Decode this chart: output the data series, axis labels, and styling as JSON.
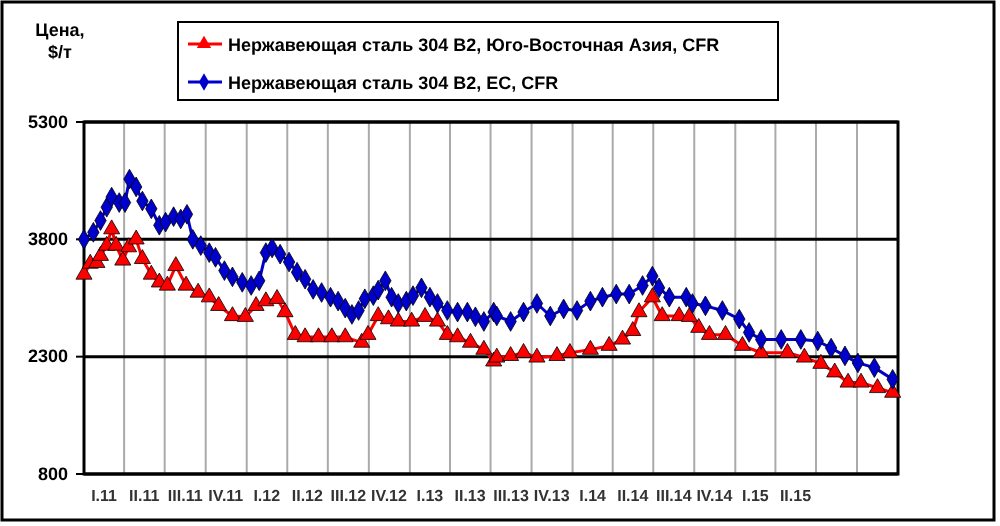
{
  "chart_data": {
    "type": "line",
    "ylabel": "Цена, $/т",
    "xlim": [
      "2011-01-01",
      "2016-01-01"
    ],
    "ylim": [
      800,
      5300
    ],
    "yticks": [
      800,
      2300,
      3800,
      5300
    ],
    "xticks": [
      {
        "value": "2011-02-15",
        "label": "I.11"
      },
      {
        "value": "2011-04-01",
        "label": null
      },
      {
        "value": "2011-05-16",
        "label": "II.11"
      },
      {
        "value": "2011-07-01",
        "label": null
      },
      {
        "value": "2011-08-16",
        "label": "III.11"
      },
      {
        "value": "2011-10-01",
        "label": null
      },
      {
        "value": "2011-11-15",
        "label": "IV.11"
      },
      {
        "value": "2012-01-01",
        "label": null
      },
      {
        "value": "2012-02-15",
        "label": "I.12"
      },
      {
        "value": "2012-04-01",
        "label": null
      },
      {
        "value": "2012-05-16",
        "label": "II.12"
      },
      {
        "value": "2012-07-01",
        "label": null
      },
      {
        "value": "2012-08-16",
        "label": "III.12"
      },
      {
        "value": "2012-10-01",
        "label": null
      },
      {
        "value": "2012-11-15",
        "label": "IV.12"
      },
      {
        "value": "2013-01-01",
        "label": null
      },
      {
        "value": "2013-02-15",
        "label": "I.13"
      },
      {
        "value": "2013-04-01",
        "label": null
      },
      {
        "value": "2013-05-16",
        "label": "II.13"
      },
      {
        "value": "2013-07-01",
        "label": null
      },
      {
        "value": "2013-08-16",
        "label": "III.13"
      },
      {
        "value": "2013-10-01",
        "label": null
      },
      {
        "value": "2013-11-15",
        "label": "IV.13"
      },
      {
        "value": "2014-01-01",
        "label": null
      },
      {
        "value": "2014-02-15",
        "label": "I.14"
      },
      {
        "value": "2014-04-01",
        "label": null
      },
      {
        "value": "2014-05-16",
        "label": "II.14"
      },
      {
        "value": "2014-07-01",
        "label": null
      },
      {
        "value": "2014-08-16",
        "label": "III.14"
      },
      {
        "value": "2014-10-01",
        "label": null
      },
      {
        "value": "2014-11-15",
        "label": "IV.14"
      },
      {
        "value": "2015-01-01",
        "label": null
      },
      {
        "value": "2015-02-15",
        "label": "I.15"
      },
      {
        "value": "2015-04-01",
        "label": null
      },
      {
        "value": "2015-05-16",
        "label": "II.15"
      },
      {
        "value": "2015-07-01",
        "label": null
      },
      {
        "value": "2015-10-01",
        "label": null
      }
    ],
    "grid": true,
    "legend": "top",
    "series": [
      {
        "name": "Нержавеющая сталь 304 В2, Юго-Восточная Азия, CFR",
        "color": "#ff0000",
        "marker": "triangle",
        "x": [
          "2011-01-01",
          "2011-01-15",
          "2011-01-30",
          "2011-02-07",
          "2011-02-21",
          "2011-03-04",
          "2011-03-14",
          "2011-03-29",
          "2011-04-11",
          "2011-04-28",
          "2011-05-12",
          "2011-06-01",
          "2011-06-19",
          "2011-07-07",
          "2011-07-26",
          "2011-08-18",
          "2011-09-14",
          "2011-10-09",
          "2011-10-30",
          "2011-11-30",
          "2011-12-29",
          "2012-01-22",
          "2012-02-13",
          "2012-03-09",
          "2012-03-27",
          "2012-04-19",
          "2012-05-11",
          "2012-06-10",
          "2012-07-10",
          "2012-08-09",
          "2012-09-15",
          "2012-09-29",
          "2012-10-22",
          "2012-11-14",
          "2012-12-06",
          "2013-01-05",
          "2013-02-04",
          "2013-03-04",
          "2013-03-26",
          "2013-04-18",
          "2013-05-17",
          "2013-06-16",
          "2013-07-08",
          "2013-07-15",
          "2013-08-15",
          "2013-09-13",
          "2013-10-13",
          "2013-11-27",
          "2013-12-26",
          "2014-02-10",
          "2014-03-24",
          "2014-04-23",
          "2014-05-16",
          "2014-05-30",
          "2014-06-29",
          "2014-07-21",
          "2014-08-28",
          "2014-09-20",
          "2014-10-11",
          "2014-11-04",
          "2014-12-10",
          "2015-01-17",
          "2015-02-28",
          "2015-04-28",
          "2015-06-05",
          "2015-07-12",
          "2015-08-12",
          "2015-09-11",
          "2015-10-10",
          "2015-11-16",
          "2015-12-20"
        ],
        "values": [
          3350,
          3490,
          3500,
          3590,
          3720,
          3930,
          3720,
          3530,
          3700,
          3800,
          3550,
          3350,
          3250,
          3210,
          3460,
          3210,
          3120,
          3060,
          2950,
          2820,
          2810,
          2950,
          3010,
          3040,
          2870,
          2580,
          2550,
          2550,
          2550,
          2550,
          2480,
          2580,
          2820,
          2780,
          2750,
          2750,
          2810,
          2750,
          2580,
          2550,
          2480,
          2390,
          2240,
          2290,
          2310,
          2350,
          2290,
          2310,
          2350,
          2390,
          2440,
          2520,
          2630,
          2870,
          3060,
          2820,
          2820,
          2810,
          2670,
          2580,
          2580,
          2440,
          2350,
          2350,
          2290,
          2210,
          2100,
          1970,
          1970,
          1900,
          1840
        ]
      },
      {
        "name": "Нержавеющая сталь 304 В2, ЕС, CFR",
        "color": "#0000cc",
        "marker": "diamond",
        "x": [
          "2011-01-01",
          "2011-01-22",
          "2011-02-07",
          "2011-02-21",
          "2011-03-04",
          "2011-03-21",
          "2011-04-03",
          "2011-04-13",
          "2011-04-28",
          "2011-05-12",
          "2011-06-01",
          "2011-06-19",
          "2011-07-03",
          "2011-07-21",
          "2011-08-06",
          "2011-08-20",
          "2011-09-02",
          "2011-09-20",
          "2011-10-09",
          "2011-10-23",
          "2011-11-12",
          "2011-11-30",
          "2011-12-22",
          "2012-01-11",
          "2012-01-29",
          "2012-02-13",
          "2012-02-27",
          "2012-03-16",
          "2012-04-05",
          "2012-04-23",
          "2012-05-11",
          "2012-05-29",
          "2012-06-17",
          "2012-07-07",
          "2012-07-24",
          "2012-08-09",
          "2012-08-24",
          "2012-09-08",
          "2012-09-22",
          "2012-10-11",
          "2012-10-22",
          "2012-11-07",
          "2012-11-21",
          "2012-12-06",
          "2012-12-24",
          "2013-01-08",
          "2013-01-27",
          "2013-02-15",
          "2013-03-04",
          "2013-03-26",
          "2013-04-18",
          "2013-05-10",
          "2013-05-28",
          "2013-06-16",
          "2013-07-08",
          "2013-07-15",
          "2013-08-15",
          "2013-09-13",
          "2013-10-13",
          "2013-11-12",
          "2013-12-12",
          "2014-01-11",
          "2014-02-10",
          "2014-03-09",
          "2014-04-09",
          "2014-05-08",
          "2014-06-07",
          "2014-06-29",
          "2014-07-14",
          "2014-08-06",
          "2014-09-13",
          "2014-09-27",
          "2014-10-26",
          "2014-12-03",
          "2015-01-10",
          "2015-02-01",
          "2015-02-28",
          "2015-04-14",
          "2015-05-28",
          "2015-07-05",
          "2015-08-04",
          "2015-09-04",
          "2015-10-03",
          "2015-11-09",
          "2015-12-20"
        ],
        "values": [
          3800,
          3890,
          4040,
          4210,
          4340,
          4270,
          4270,
          4570,
          4470,
          4290,
          4190,
          3980,
          4020,
          4090,
          4060,
          4120,
          3800,
          3720,
          3630,
          3570,
          3400,
          3320,
          3250,
          3210,
          3270,
          3630,
          3690,
          3610,
          3510,
          3380,
          3290,
          3160,
          3120,
          3060,
          3010,
          2920,
          2840,
          2890,
          3040,
          3080,
          3150,
          3270,
          3060,
          2980,
          3010,
          3080,
          3180,
          3060,
          2980,
          2890,
          2870,
          2870,
          2810,
          2750,
          2870,
          2820,
          2750,
          2870,
          2980,
          2820,
          2910,
          2890,
          3010,
          3060,
          3100,
          3100,
          3210,
          3330,
          3180,
          3060,
          3060,
          2980,
          2950,
          2890,
          2780,
          2610,
          2520,
          2520,
          2520,
          2500,
          2410,
          2310,
          2220,
          2160,
          2010
        ]
      }
    ]
  }
}
